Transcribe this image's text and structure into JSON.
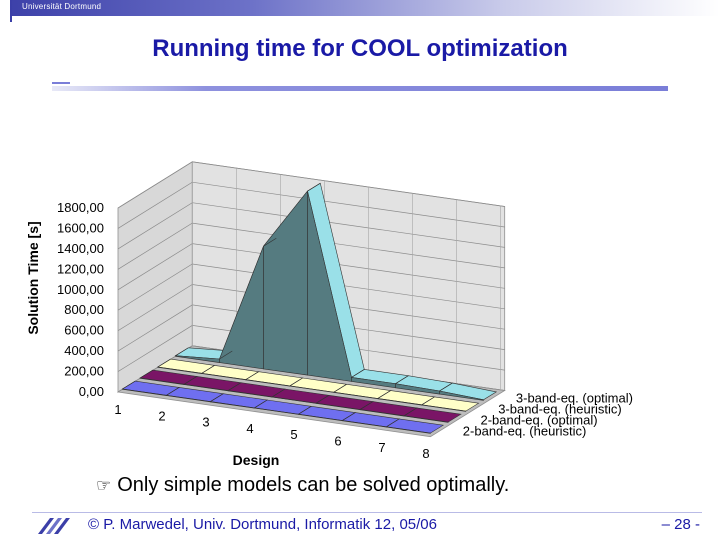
{
  "header": {
    "university": "Universität Dortmund"
  },
  "slide": {
    "title": "Running time for COOL optimization",
    "note_icon": "pointing-hand-icon",
    "note": "Only simple models can be solved optimally.",
    "footer": "© P. Marwedel, Univ. Dortmund, Informatik 12, 05/06",
    "page": "– 28 -"
  },
  "chart_data": {
    "type": "area",
    "title": "",
    "xlabel": "Design",
    "ylabel": "Solution Time [s]",
    "categories": [
      "1",
      "2",
      "3",
      "4",
      "5",
      "6",
      "7",
      "8"
    ],
    "y_ticks": [
      "0,00",
      "200,00",
      "400,00",
      "600,00",
      "800,00",
      "1000,00",
      "1200,00",
      "1400,00",
      "1600,00",
      "1800,00"
    ],
    "ylim": [
      0,
      1800
    ],
    "grid": true,
    "legend": "series labels at right end of each ribbon",
    "series": [
      {
        "name": "2-band-eq. (heuristic)",
        "values": [
          2,
          2,
          2,
          2,
          2,
          2,
          2,
          2
        ],
        "color": "#6f6ff0"
      },
      {
        "name": "2-band-eq. (optimal)",
        "values": [
          2,
          2,
          2,
          2,
          2,
          2,
          2,
          2
        ],
        "color": "#7a1566"
      },
      {
        "name": "3-band-eq. (heuristic)",
        "values": [
          2,
          2,
          2,
          2,
          2,
          2,
          2,
          2
        ],
        "color": "#ffffc8"
      },
      {
        "name": "3-band-eq. (optimal)",
        "values": [
          5,
          35,
          1200,
          1800,
          40,
          40,
          30,
          5
        ],
        "color": "#9ae0e8"
      }
    ]
  }
}
